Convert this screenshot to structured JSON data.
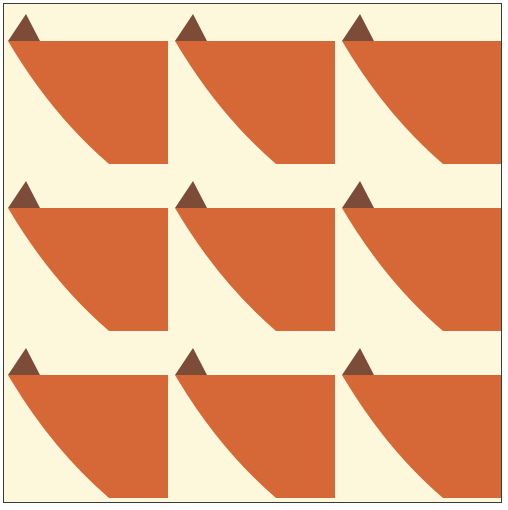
{
  "pattern": {
    "name": "tiled-shape-pattern",
    "rows": 3,
    "columns": 3,
    "colors": {
      "background": "#fdf7dc",
      "main_shape": "#d66837",
      "tip_shape": "#7d4c39",
      "frame_border": "#3a3a3a"
    }
  }
}
